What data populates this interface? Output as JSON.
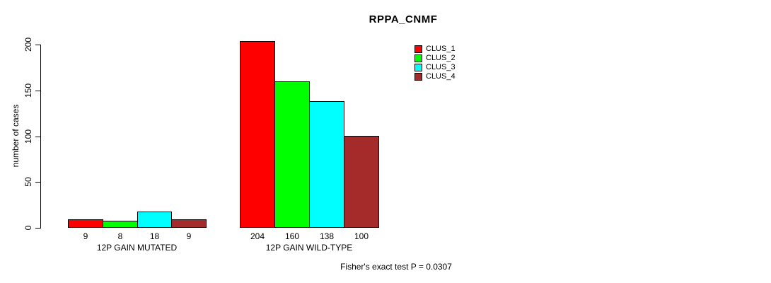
{
  "chart_data": {
    "type": "bar",
    "title": "RPPA_CNMF",
    "xlabel": "",
    "ylabel": "number of cases",
    "ylim": [
      0,
      200
    ],
    "yticks": [
      0,
      50,
      100,
      150,
      200
    ],
    "grid": false,
    "legend_position": "top-right",
    "bar_value_labels_shown": true,
    "categories": [
      "12P GAIN MUTATED",
      "12P GAIN WILD-TYPE"
    ],
    "series": [
      {
        "name": "CLUS_1",
        "color": "#FF0000",
        "values": [
          9,
          204
        ]
      },
      {
        "name": "CLUS_2",
        "color": "#00FF00",
        "values": [
          8,
          160
        ]
      },
      {
        "name": "CLUS_3",
        "color": "#00FFFF",
        "values": [
          18,
          138
        ]
      },
      {
        "name": "CLUS_4",
        "color": "#A52A2A",
        "values": [
          9,
          100
        ]
      }
    ],
    "annotation": "Fisher's exact test P = 0.0307"
  }
}
